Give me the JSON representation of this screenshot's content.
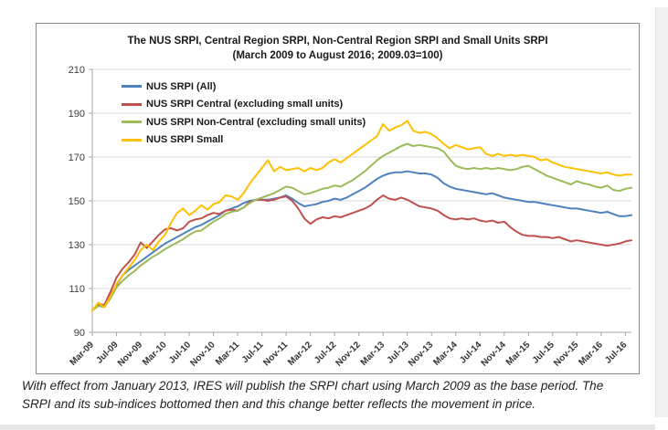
{
  "page": {
    "caption": "With effect from January 2013, IRES will publish the SRPI chart using March 2009 as the base period. The SRPI and its sub-indices bottomed then and this change better reflects the movement in price."
  },
  "chart_data": {
    "type": "line",
    "title_line1": "The NUS SRPI, Central Region SRPI,  Non-Central Region SRPI  and  Small Units SRPI",
    "title_line2": "(March 2009 to August 2016; 2009.03=100)",
    "ylim": [
      90,
      210
    ],
    "y_ticks": [
      210,
      190,
      170,
      150,
      130,
      110,
      90
    ],
    "x_tick_every": 4,
    "grid": true,
    "legend_position": "top-left-inside",
    "grid_color": "#d9d9d9",
    "axis_color": "#a6a6a6",
    "categories": [
      "Mar-09",
      "Apr-09",
      "May-09",
      "Jun-09",
      "Jul-09",
      "Aug-09",
      "Sep-09",
      "Oct-09",
      "Nov-09",
      "Dec-09",
      "Jan-10",
      "Feb-10",
      "Mar-10",
      "Apr-10",
      "May-10",
      "Jun-10",
      "Jul-10",
      "Aug-10",
      "Sep-10",
      "Oct-10",
      "Nov-10",
      "Dec-10",
      "Jan-11",
      "Feb-11",
      "Mar-11",
      "Apr-11",
      "May-11",
      "Jun-11",
      "Jul-11",
      "Aug-11",
      "Sep-11",
      "Oct-11",
      "Nov-11",
      "Dec-11",
      "Jan-12",
      "Feb-12",
      "Mar-12",
      "Apr-12",
      "May-12",
      "Jun-12",
      "Jul-12",
      "Aug-12",
      "Sep-12",
      "Oct-12",
      "Nov-12",
      "Dec-12",
      "Jan-13",
      "Feb-13",
      "Mar-13",
      "Apr-13",
      "May-13",
      "Jun-13",
      "Jul-13",
      "Aug-13",
      "Sep-13",
      "Oct-13",
      "Nov-13",
      "Dec-13",
      "Jan-14",
      "Feb-14",
      "Mar-14",
      "Apr-14",
      "May-14",
      "Jun-14",
      "Jul-14",
      "Aug-14",
      "Sep-14",
      "Oct-14",
      "Nov-14",
      "Dec-14",
      "Jan-15",
      "Feb-15",
      "Mar-15",
      "Apr-15",
      "May-15",
      "Jun-15",
      "Jul-15",
      "Aug-15",
      "Sep-15",
      "Oct-15",
      "Nov-15",
      "Dec-15",
      "Jan-16",
      "Feb-16",
      "Mar-16",
      "Apr-16",
      "May-16",
      "Jun-16",
      "Jul-16",
      "Aug-16"
    ],
    "series": [
      {
        "name": "NUS SRPI (All)",
        "color": "#4F81BD",
        "values": [
          100,
          102.5,
          102,
          107,
          111.5,
          116,
          118.5,
          120.5,
          122.5,
          124.5,
          126.5,
          128.5,
          130.5,
          132,
          133.5,
          135,
          136.5,
          138,
          139,
          140.5,
          142,
          143.5,
          145.5,
          146.5,
          147.5,
          149,
          150,
          150.5,
          150.5,
          150.5,
          151,
          151.5,
          152.5,
          151,
          149,
          147.5,
          148,
          148.5,
          149.5,
          150,
          151,
          150.5,
          151.5,
          153,
          154.5,
          156,
          158,
          160,
          161.5,
          162.5,
          163,
          163,
          163.5,
          163,
          162.5,
          162.5,
          162,
          160.5,
          158,
          156.5,
          155.5,
          155,
          154.5,
          154,
          153.5,
          153,
          153.5,
          152.5,
          151.5,
          151,
          150.5,
          150,
          149.5,
          149.5,
          149,
          148.5,
          148,
          147.5,
          147,
          146.5,
          146.5,
          146,
          145.5,
          145,
          144.5,
          145,
          144,
          143,
          143,
          143.5
        ]
      },
      {
        "name": "NUS SRPI Central (excluding small units)",
        "color": "#C0504D",
        "values": [
          100,
          103,
          102.5,
          108.5,
          115,
          119,
          122,
          125.5,
          131,
          128.5,
          131.5,
          134.5,
          137,
          137.5,
          136.5,
          137.5,
          140.5,
          141.5,
          142,
          143.5,
          144.5,
          144,
          145.5,
          146,
          145.5,
          147,
          149.5,
          150.5,
          150.5,
          150,
          150.5,
          151.5,
          152,
          150,
          146.5,
          142,
          139.5,
          141.5,
          142.5,
          142,
          143,
          142.5,
          143.5,
          144.5,
          145.5,
          146.5,
          148,
          150.5,
          152.5,
          151,
          150.5,
          151.5,
          150.5,
          149,
          147.5,
          147,
          146.5,
          145.5,
          143.5,
          142,
          141.5,
          142,
          141.5,
          142,
          141,
          140.5,
          141,
          140,
          140.5,
          138,
          136,
          134.5,
          134,
          134,
          133.5,
          133.5,
          133,
          133.5,
          132.5,
          131.5,
          132,
          131.5,
          131,
          130.5,
          130,
          129.5,
          130,
          130.5,
          131.5,
          132
        ]
      },
      {
        "name": "NUS SRPI Non-Central (excluding small units)",
        "color": "#9BBB59",
        "values": [
          100,
          102,
          101.5,
          105.5,
          110.5,
          113.5,
          116,
          118,
          120.5,
          122.5,
          124.5,
          126,
          128,
          129.5,
          131,
          132.5,
          134.5,
          136,
          136.5,
          138.5,
          140.5,
          142,
          144,
          145,
          145.5,
          147,
          149,
          150.5,
          151.5,
          152.5,
          153.5,
          155,
          156.5,
          156,
          154.5,
          153,
          153.5,
          154.5,
          155.5,
          156,
          157,
          156.5,
          158,
          159.5,
          161.5,
          163.5,
          166,
          168.5,
          170.5,
          172,
          173.5,
          175,
          176,
          175,
          175.5,
          175,
          174.5,
          174,
          172.5,
          169,
          166,
          165,
          164.5,
          165,
          164.5,
          165,
          164.5,
          165,
          164.5,
          164,
          164.5,
          165.5,
          166,
          164.5,
          163,
          161.5,
          160.5,
          159.5,
          158.5,
          157.5,
          159,
          158,
          157.5,
          156.5,
          156,
          157,
          155,
          154.5,
          155.5,
          156
        ]
      },
      {
        "name": "NUS SRPI Small",
        "color": "#FFC000",
        "values": [
          100,
          103.5,
          101.5,
          106.5,
          112,
          116,
          119.5,
          123,
          127.5,
          130,
          127.5,
          131.5,
          134.5,
          140,
          144.5,
          146.5,
          143.5,
          145.5,
          148,
          146,
          148.5,
          149.5,
          152.5,
          152,
          150.5,
          153.5,
          158,
          161.5,
          165,
          168.5,
          163.5,
          165.5,
          164,
          164.5,
          165,
          163.5,
          165,
          164,
          165,
          167.5,
          169,
          167.5,
          169.5,
          171.5,
          173.5,
          175.5,
          177.5,
          179.5,
          185,
          182,
          183.5,
          184.5,
          186.5,
          182,
          181,
          181.5,
          180.5,
          178.5,
          176,
          174,
          175.5,
          174.5,
          173.5,
          174,
          174.5,
          171.5,
          170.5,
          171.5,
          170.5,
          171,
          170.5,
          171,
          170.5,
          170,
          168.5,
          169,
          167.5,
          166.5,
          165.5,
          165,
          164.5,
          164,
          163.5,
          163,
          162.5,
          163,
          162,
          161.5,
          162,
          162
        ]
      }
    ]
  }
}
